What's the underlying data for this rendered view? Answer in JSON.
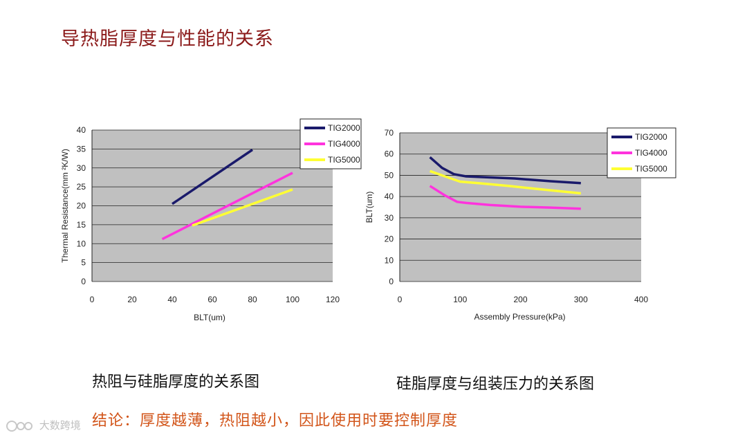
{
  "page": {
    "title": "导热脂厚度与性能的关系",
    "caption_left": "热阻与硅脂厚度的关系图",
    "caption_right": "硅脂厚度与组装压力的关系图",
    "conclusion": "结论：厚度越薄，热阻越小，因此使用时要控制厚度",
    "watermark": "大数跨境"
  },
  "colors": {
    "title": "#8b1a1a",
    "conclusion": "#d2551a",
    "plot_bg": "#c0c0c0",
    "TIG2000": "#1a1a6b",
    "TIG4000": "#ff33dd",
    "TIG5000": "#ffff33"
  },
  "chart_data": [
    {
      "type": "line",
      "xlabel": "BLT(um)",
      "ylabel": "Thermal Resistance(mm ²K/W)",
      "xlim": [
        0,
        120
      ],
      "ylim": [
        0,
        40
      ],
      "xticks": [
        "0",
        "20",
        "40",
        "60",
        "80",
        "100",
        "120"
      ],
      "yticks": [
        "0",
        "5",
        "10",
        "15",
        "20",
        "25",
        "30",
        "35",
        "40"
      ],
      "grid": true,
      "legend": "top-right",
      "series": [
        {
          "name": "TIG2000",
          "x": [
            40,
            80
          ],
          "y": [
            20.5,
            34.8
          ]
        },
        {
          "name": "TIG4000",
          "x": [
            35,
            100
          ],
          "y": [
            11.2,
            28.7
          ]
        },
        {
          "name": "TIG5000",
          "x": [
            50,
            100
          ],
          "y": [
            14.8,
            24.3
          ]
        }
      ]
    },
    {
      "type": "line",
      "xlabel": "Assembly Pressure(kPa)",
      "ylabel": "BLT(um)",
      "xlim": [
        0,
        400
      ],
      "ylim": [
        0,
        70
      ],
      "xticks": [
        "0",
        "100",
        "200",
        "300",
        "400"
      ],
      "yticks": [
        "0",
        "10",
        "20",
        "30",
        "40",
        "50",
        "60",
        "70"
      ],
      "grid": true,
      "legend": "top-right",
      "series": [
        {
          "name": "TIG2000",
          "x": [
            50,
            70,
            90,
            110,
            150,
            190,
            250,
            300
          ],
          "y": [
            58.5,
            53.5,
            50.5,
            49.5,
            49,
            48.5,
            47.2,
            46.3
          ]
        },
        {
          "name": "TIG4000",
          "x": [
            50,
            75,
            95,
            110,
            150,
            200,
            250,
            300
          ],
          "y": [
            45,
            40.5,
            37.5,
            37,
            36,
            35.2,
            34.8,
            34.3
          ]
        },
        {
          "name": "TIG5000",
          "x": [
            50,
            75,
            100,
            130,
            180,
            230,
            300
          ],
          "y": [
            52,
            49.5,
            47,
            46.3,
            45,
            43.5,
            41.5
          ]
        }
      ]
    }
  ]
}
